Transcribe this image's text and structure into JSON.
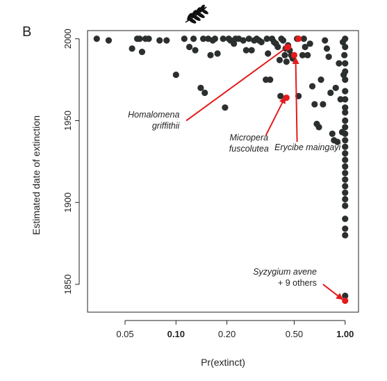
{
  "panel_label": "B",
  "colors": {
    "point": "#2b2f2e",
    "highlight": "#e41a1c",
    "arrow": "#e41a1c",
    "frame": "#222222"
  },
  "icon": "leaf-sprig-icon",
  "chart_data": {
    "type": "scatter",
    "title": "",
    "xlabel": "Pr(extinct)",
    "ylabel": "Estimated date of extinction",
    "x_scale": "log",
    "xlim": [
      0.03,
      1.2
    ],
    "ylim": [
      1833,
      2005
    ],
    "xticks": [
      {
        "value": 0.05,
        "label": "0.05",
        "bold": false
      },
      {
        "value": 0.1,
        "label": "0.10",
        "bold": true
      },
      {
        "value": 0.2,
        "label": "0.20",
        "bold": false
      },
      {
        "value": 0.5,
        "label": "0.50",
        "bold": false
      },
      {
        "value": 1.0,
        "label": "1.00",
        "bold": true
      }
    ],
    "yticks": [
      {
        "value": 1850,
        "label": "1850"
      },
      {
        "value": 1900,
        "label": "1900"
      },
      {
        "value": 1950,
        "label": "1950"
      },
      {
        "value": 2000,
        "label": "2000"
      }
    ],
    "grid": false,
    "legend": "none",
    "points": [
      [
        0.034,
        2000
      ],
      [
        0.04,
        1999
      ],
      [
        0.055,
        1994
      ],
      [
        0.059,
        2000
      ],
      [
        0.061,
        2000
      ],
      [
        0.063,
        1992
      ],
      [
        0.066,
        2000
      ],
      [
        0.069,
        2000
      ],
      [
        0.08,
        1999
      ],
      [
        0.088,
        1999
      ],
      [
        0.1,
        1978
      ],
      [
        0.112,
        2000
      ],
      [
        0.12,
        1995
      ],
      [
        0.127,
        2000
      ],
      [
        0.13,
        1993
      ],
      [
        0.14,
        1970
      ],
      [
        0.148,
        1967
      ],
      [
        0.145,
        2000
      ],
      [
        0.155,
        2000
      ],
      [
        0.16,
        1990
      ],
      [
        0.165,
        1999
      ],
      [
        0.17,
        2000
      ],
      [
        0.176,
        1991
      ],
      [
        0.19,
        2000
      ],
      [
        0.195,
        1958
      ],
      [
        0.205,
        2000
      ],
      [
        0.21,
        1999
      ],
      [
        0.22,
        1997
      ],
      [
        0.225,
        2000
      ],
      [
        0.235,
        2000
      ],
      [
        0.25,
        1999
      ],
      [
        0.26,
        1993
      ],
      [
        0.27,
        2000
      ],
      [
        0.28,
        1993
      ],
      [
        0.29,
        1999
      ],
      [
        0.3,
        2000
      ],
      [
        0.31,
        1999
      ],
      [
        0.32,
        1998
      ],
      [
        0.34,
        1975
      ],
      [
        0.345,
        2000
      ],
      [
        0.35,
        1991
      ],
      [
        0.36,
        1975
      ],
      [
        0.37,
        2000
      ],
      [
        0.38,
        1998
      ],
      [
        0.39,
        1997
      ],
      [
        0.4,
        1995
      ],
      [
        0.41,
        1987
      ],
      [
        0.415,
        1965
      ],
      [
        0.42,
        2000
      ],
      [
        0.43,
        1999
      ],
      [
        0.44,
        1990
      ],
      [
        0.445,
        1994
      ],
      [
        0.45,
        1986
      ],
      [
        0.46,
        1996
      ],
      [
        0.47,
        1993
      ],
      [
        0.48,
        1990
      ],
      [
        0.49,
        1988
      ],
      [
        0.52,
        2000
      ],
      [
        0.53,
        1965
      ],
      [
        0.56,
        1990
      ],
      [
        0.57,
        2000
      ],
      [
        0.58,
        1995
      ],
      [
        0.6,
        1990
      ],
      [
        0.62,
        1997
      ],
      [
        0.64,
        1971
      ],
      [
        0.66,
        1960
      ],
      [
        0.68,
        1948
      ],
      [
        0.7,
        1946
      ],
      [
        0.72,
        1975
      ],
      [
        0.74,
        1960
      ],
      [
        0.76,
        1999
      ],
      [
        0.78,
        1994
      ],
      [
        0.8,
        1989
      ],
      [
        0.82,
        1967
      ],
      [
        0.84,
        1942
      ],
      [
        0.86,
        1938
      ],
      [
        0.88,
        1970
      ],
      [
        0.9,
        1937
      ],
      [
        0.92,
        1985
      ],
      [
        0.94,
        1963
      ],
      [
        0.96,
        1943
      ],
      [
        0.97,
        1998
      ],
      [
        0.98,
        1978
      ],
      [
        0.99,
        1990
      ],
      [
        1.0,
        2000
      ],
      [
        1.0,
        1995
      ],
      [
        1.0,
        1985
      ],
      [
        1.0,
        1980
      ],
      [
        1.0,
        1975
      ],
      [
        1.0,
        1968
      ],
      [
        1.0,
        1963
      ],
      [
        1.0,
        1958
      ],
      [
        1.0,
        1955
      ],
      [
        1.0,
        1950
      ],
      [
        1.0,
        1946
      ],
      [
        1.0,
        1942
      ],
      [
        1.0,
        1938
      ],
      [
        1.0,
        1934
      ],
      [
        1.0,
        1930
      ],
      [
        1.0,
        1926
      ],
      [
        1.0,
        1922
      ],
      [
        1.0,
        1918
      ],
      [
        1.0,
        1914
      ],
      [
        1.0,
        1910
      ],
      [
        1.0,
        1906
      ],
      [
        1.0,
        1902
      ],
      [
        1.0,
        1898
      ],
      [
        1.0,
        1890
      ],
      [
        1.0,
        1884
      ],
      [
        1.0,
        1880
      ],
      [
        1.0,
        1843
      ]
    ],
    "highlights": [
      {
        "x": 0.46,
        "y": 1995
      },
      {
        "x": 0.45,
        "y": 1964
      },
      {
        "x": 0.5,
        "y": 1990
      },
      {
        "x": 0.53,
        "y": 2000
      },
      {
        "x": 1.0,
        "y": 1840
      }
    ],
    "annotations": [
      {
        "lines": [
          "Homalomena",
          "griffithii"
        ],
        "italic": true,
        "tx": 0.105,
        "ty": 1952,
        "align": "end",
        "tip": [
          0.47,
          1996
        ],
        "tail": [
          0.115,
          1950
        ]
      },
      {
        "lines": [
          "Micropera",
          "fuscolutea"
        ],
        "italic": true,
        "tx": 0.27,
        "ty": 1938,
        "align": "middle",
        "tip": [
          0.44,
          1964
        ],
        "tail": [
          0.34,
          1941
        ]
      },
      {
        "lines": [
          "Erycibe maingayi"
        ],
        "italic": true,
        "tx": 0.6,
        "ty": 1932,
        "align": "middle",
        "tip": [
          0.51,
          1988
        ],
        "tail": [
          0.52,
          1937
        ]
      },
      {
        "lines": [
          "Syzygium avene",
          "+ 9 others"
        ],
        "italic": true,
        "plain_second": true,
        "tx": 0.68,
        "ty": 1856,
        "align": "end",
        "tip": [
          0.96,
          1841
        ],
        "tail": [
          0.74,
          1850
        ]
      }
    ]
  }
}
